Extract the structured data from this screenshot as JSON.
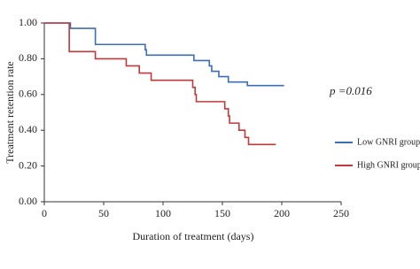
{
  "chart_data": {
    "type": "step",
    "xlabel": "Duration of treatment (days)",
    "ylabel": "Treatment retention rate",
    "annotation": "p =0.016",
    "xlim": [
      0,
      250
    ],
    "xticks": [
      0,
      50,
      100,
      150,
      200,
      250
    ],
    "ylim": [
      0,
      1
    ],
    "yticks": [
      {
        "value": 0,
        "label": "0.00"
      },
      {
        "value": 0.2,
        "label": "0.20"
      },
      {
        "value": 0.4,
        "label": "0.40"
      },
      {
        "value": 0.6,
        "label": "0.60"
      },
      {
        "value": 0.8,
        "label": "0.80"
      },
      {
        "value": 1,
        "label": "1.00"
      }
    ],
    "grid": false,
    "legend": "right",
    "series": [
      {
        "name": "Low GNRI group",
        "color": "#3a6fb5",
        "x": [
          0,
          22,
          43,
          85,
          86,
          126,
          139,
          141,
          147,
          155,
          171,
          202
        ],
        "values": [
          1.0,
          0.97,
          0.88,
          0.85,
          0.82,
          0.79,
          0.76,
          0.73,
          0.7,
          0.67,
          0.65,
          0.65
        ]
      },
      {
        "name": "High GNRI group",
        "color": "#c0393b",
        "x": [
          0,
          21,
          43,
          69,
          80,
          90,
          125,
          127,
          128,
          152,
          155,
          156,
          164,
          169,
          172,
          195
        ],
        "values": [
          1.0,
          0.84,
          0.8,
          0.76,
          0.72,
          0.68,
          0.64,
          0.6,
          0.56,
          0.52,
          0.48,
          0.44,
          0.4,
          0.36,
          0.32,
          0.32
        ]
      }
    ]
  }
}
